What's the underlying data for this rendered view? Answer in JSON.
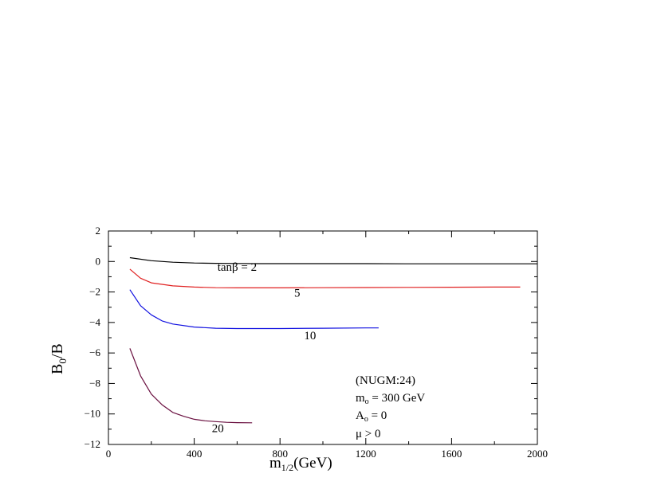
{
  "chart_data": {
    "type": "line",
    "xlabel_main": "m",
    "xlabel_sub": "1/2",
    "xlabel_unit": "(GeV)",
    "ylabel_main": "B",
    "ylabel_sub": "0",
    "ylabel_tail": "/B",
    "xlim": [
      0,
      2000
    ],
    "ylim": [
      -12,
      2
    ],
    "xticks": [
      0,
      400,
      800,
      1200,
      1600,
      2000
    ],
    "yticks": [
      2,
      0,
      -2,
      -4,
      -6,
      -8,
      -10,
      -12
    ],
    "grid": false,
    "series": [
      {
        "name": "tanβ = 2",
        "color": "#000000",
        "x": [
          100,
          200,
          300,
          400,
          500,
          600,
          700,
          800,
          1000,
          1200,
          1400,
          1600,
          1800,
          2000
        ],
        "y": [
          0.25,
          0.05,
          -0.05,
          -0.1,
          -0.12,
          -0.13,
          -0.14,
          -0.14,
          -0.14,
          -0.14,
          -0.15,
          -0.15,
          -0.15,
          -0.15
        ]
      },
      {
        "name": "5",
        "color": "#e02020",
        "x": [
          100,
          150,
          200,
          300,
          400,
          500,
          600,
          800,
          1000,
          1200,
          1400,
          1600,
          1800,
          1920
        ],
        "y": [
          -0.5,
          -1.1,
          -1.4,
          -1.6,
          -1.68,
          -1.72,
          -1.73,
          -1.73,
          -1.72,
          -1.71,
          -1.7,
          -1.69,
          -1.68,
          -1.68
        ]
      },
      {
        "name": "10",
        "color": "#1010e0",
        "x": [
          100,
          150,
          200,
          250,
          300,
          400,
          500,
          600,
          800,
          1000,
          1200,
          1260
        ],
        "y": [
          -1.85,
          -2.9,
          -3.5,
          -3.9,
          -4.1,
          -4.3,
          -4.38,
          -4.4,
          -4.4,
          -4.38,
          -4.36,
          -4.36
        ]
      },
      {
        "name": "20",
        "color": "#6a1040",
        "x": [
          100,
          150,
          200,
          250,
          300,
          350,
          400,
          450,
          500,
          550,
          600,
          670
        ],
        "y": [
          -5.7,
          -7.5,
          -8.7,
          -9.4,
          -9.9,
          -10.15,
          -10.35,
          -10.45,
          -10.5,
          -10.55,
          -10.57,
          -10.58
        ]
      }
    ],
    "annotations": [
      {
        "key": "nugm",
        "text": "(NUGM:24)"
      },
      {
        "key": "m0",
        "main": "m",
        "sub": "o",
        "rest": " = 300 GeV"
      },
      {
        "key": "a0",
        "main": "A",
        "sub": "o",
        "rest": " = 0"
      },
      {
        "key": "mu",
        "text": "μ > 0"
      }
    ]
  }
}
